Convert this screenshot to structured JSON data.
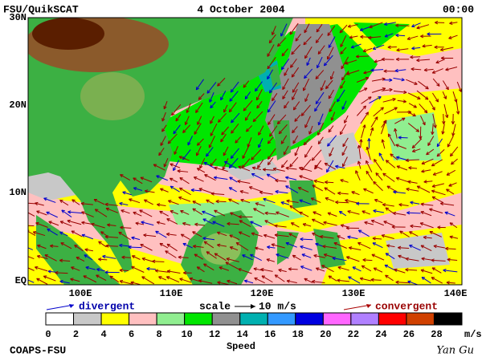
{
  "header": {
    "left": "FSU/QuikSCAT",
    "center": "4 October 2004",
    "right": "00:00"
  },
  "map": {
    "lat_labels": [
      "30N",
      "20N",
      "10N",
      "EQ"
    ],
    "lon_labels": [
      "100E",
      "110E",
      "120E",
      "130E",
      "140E"
    ]
  },
  "key": {
    "divergent": "divergent",
    "scale": "scale",
    "scale_value": "10 m/s",
    "convergent": "convergent"
  },
  "colorbar": {
    "ticks": [
      0,
      2,
      4,
      6,
      8,
      10,
      12,
      14,
      16,
      18,
      20,
      22,
      24,
      26,
      28
    ],
    "colors": [
      "#ffffff",
      "#c8c8c8",
      "#ffff00",
      "#ffc0c0",
      "#90ee90",
      "#00e600",
      "#909090",
      "#00b0b0",
      "#3399ff",
      "#0000e0",
      "#ff66ff",
      "#b080ff",
      "#ff0000",
      "#d04000",
      "#000000"
    ],
    "unit": "m/s",
    "label": "Speed"
  },
  "footer": {
    "left": "COAPS-FSU",
    "right": "Yan Gu"
  }
}
